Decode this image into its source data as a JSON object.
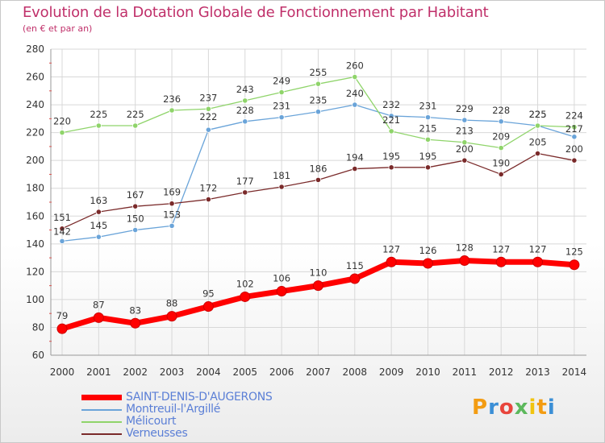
{
  "header": {
    "title": "Evolution de la Dotation Globale de Fonctionnement par Habitant",
    "subtitle": "(en € et par an)"
  },
  "logo": {
    "text": "Proxiti",
    "colors": [
      "#f39c12",
      "#3b8fd6",
      "#e8453c",
      "#5cb85c",
      "#f1c40f"
    ]
  },
  "colors": {
    "title": "#c0306a",
    "grid": "#d8d8d8",
    "axis_text": "#333333",
    "legend_text": "#5b7fd6"
  },
  "chart_data": {
    "type": "line",
    "title": "Evolution de la Dotation Globale de Fonctionnement par Habitant",
    "subtitle": "(en € et par an)",
    "x": [
      "2000",
      "2001",
      "2002",
      "2003",
      "2004",
      "2005",
      "2006",
      "2007",
      "2008",
      "2009",
      "2010",
      "2011",
      "2012",
      "2013",
      "2014"
    ],
    "ylim": [
      60,
      280
    ],
    "yticks": [
      60,
      80,
      100,
      120,
      140,
      160,
      180,
      200,
      220,
      240,
      260,
      280
    ],
    "grid": true,
    "legend_position": "bottom",
    "series": [
      {
        "name": "SAINT-DENIS-D'AUGERONS",
        "color": "#ff0000",
        "width": 7,
        "values": [
          79,
          87,
          83,
          88,
          95,
          102,
          106,
          110,
          115,
          127,
          126,
          128,
          127,
          127,
          125
        ],
        "labels": [
          "79",
          "87",
          "83",
          "88",
          "95",
          "102",
          "106",
          "110",
          "115",
          "127",
          "126",
          "128",
          "127",
          "127",
          "125"
        ]
      },
      {
        "name": "Montreuil-l'Argillé",
        "color": "#6aa4d9",
        "width": 1.3,
        "values": [
          142,
          145,
          150,
          153,
          222,
          228,
          231,
          235,
          240,
          232,
          231,
          229,
          228,
          225,
          217
        ],
        "labels": [
          "142",
          "145",
          "150",
          "153",
          "222",
          "228",
          "231",
          "235",
          "240",
          "232",
          "231",
          "229",
          "228",
          "225",
          "217"
        ]
      },
      {
        "name": "Mélicourt",
        "color": "#8fd46a",
        "width": 1.3,
        "values": [
          220,
          225,
          225,
          236,
          237,
          243,
          249,
          255,
          260,
          221,
          215,
          213,
          209,
          225,
          224
        ],
        "labels": [
          "220",
          "225",
          "225",
          "236",
          "237",
          "243",
          "249",
          "255",
          "260",
          "221",
          "215",
          "213",
          "209",
          "225",
          "224"
        ]
      },
      {
        "name": "Verneusses",
        "color": "#7a2a2a",
        "width": 1.3,
        "values": [
          151,
          163,
          167,
          169,
          172,
          177,
          181,
          186,
          194,
          195,
          195,
          200,
          190,
          205,
          200
        ],
        "labels": [
          "151",
          "163",
          "167",
          "169",
          "172",
          "177",
          "181",
          "186",
          "194",
          "195",
          "195",
          "200",
          "190",
          "205",
          "200"
        ]
      }
    ]
  }
}
